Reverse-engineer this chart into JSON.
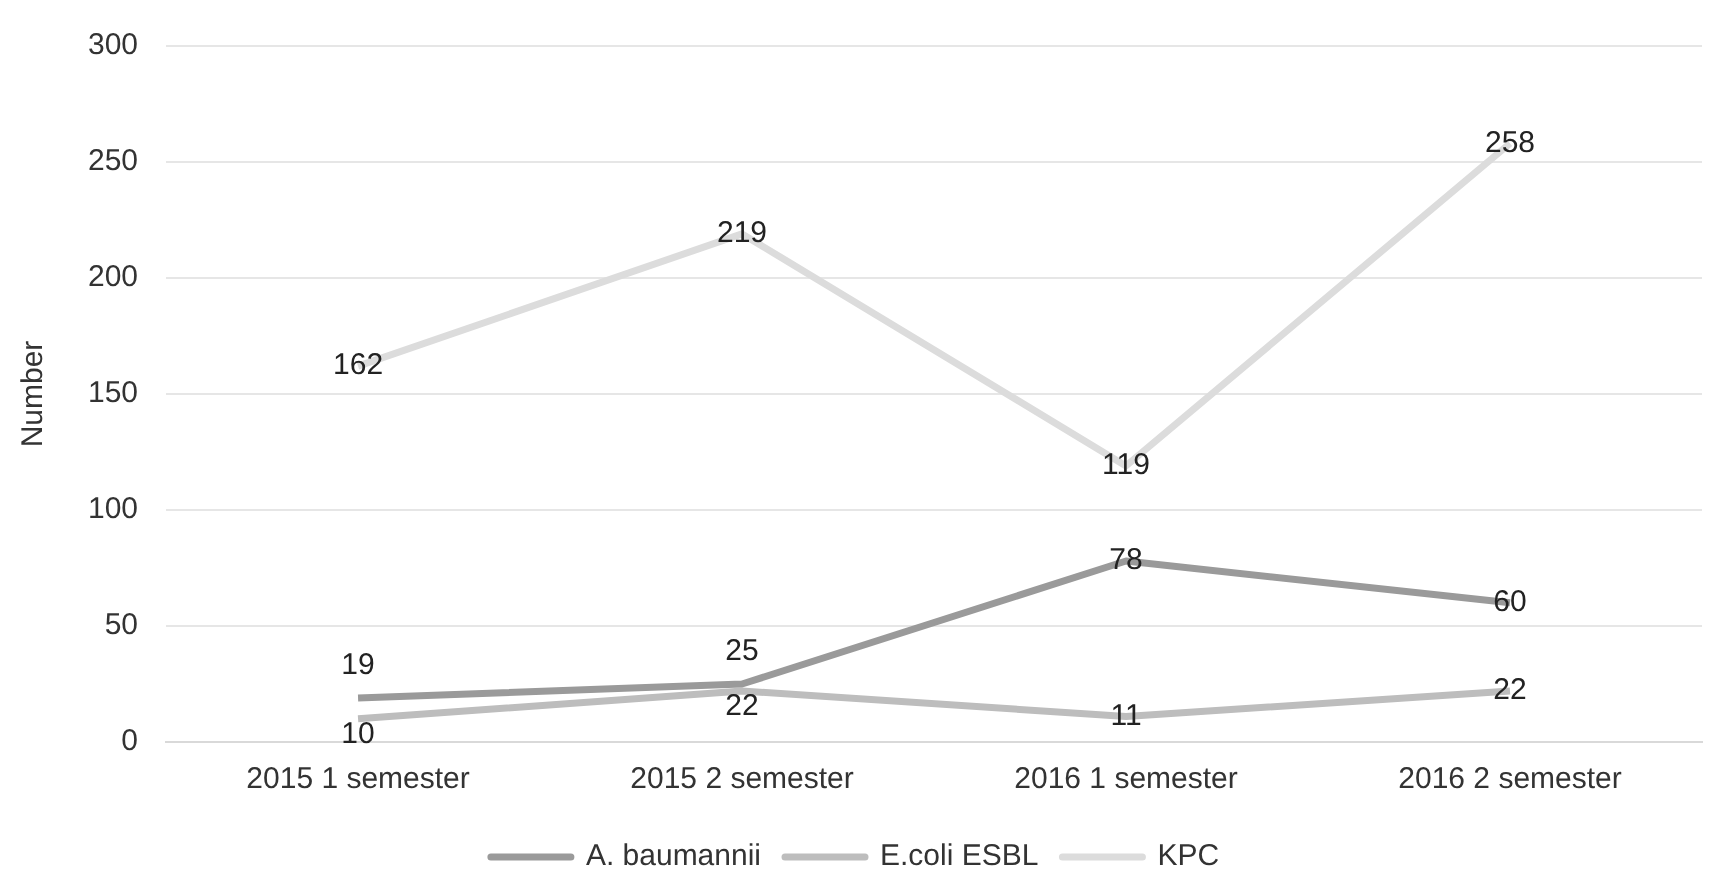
{
  "chart_data": {
    "type": "line",
    "ylabel": "Number",
    "categories": [
      "2015 1 semester",
      "2015 2 semester",
      "2016 1 semester",
      "2016 2 semester"
    ],
    "series": [
      {
        "name": "A. baumannii",
        "color": "#9a9a9a",
        "values": [
          19,
          25,
          78,
          60
        ]
      },
      {
        "name": "E.coli ESBL",
        "color": "#bdbdbd",
        "values": [
          10,
          22,
          11,
          22
        ]
      },
      {
        "name": "KPC",
        "color": "#dcdcdc",
        "values": [
          162,
          219,
          119,
          258
        ]
      }
    ],
    "ylim": [
      0,
      300
    ],
    "yticks": [
      0,
      50,
      100,
      150,
      200,
      250,
      300
    ],
    "grid": "y",
    "legend": "bottom",
    "marker": "none",
    "line_style": "solid",
    "data_labels": true
  }
}
